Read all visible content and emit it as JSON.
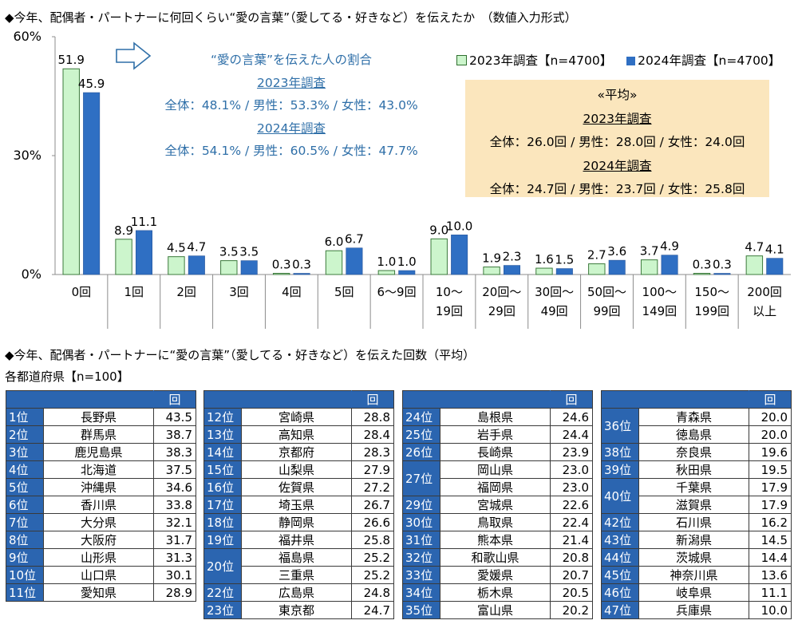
{
  "chart_title": "◆今年、配偶者・パートナーに何回くらい“愛の言葉”（愛してる・好きなど）を伝えたか　（数値入力形式）",
  "chart_data": {
    "type": "bar",
    "categories": [
      "0回",
      "1回",
      "2回",
      "3回",
      "4回",
      "5回",
      "6～9回",
      "10～\n19回",
      "20回～\n29回",
      "30回～\n49回",
      "50回～\n99回",
      "100～\n149回",
      "150～\n199回",
      "200回\n以上"
    ],
    "series": [
      {
        "name": "2023年調査【n=4700】",
        "values": [
          51.9,
          8.9,
          4.5,
          3.5,
          0.3,
          6.0,
          1.0,
          9.0,
          1.9,
          1.6,
          2.7,
          3.7,
          0.3,
          4.7
        ],
        "color": "#ccf5cc"
      },
      {
        "name": "2024年調査【n=4700】",
        "values": [
          45.9,
          11.1,
          4.7,
          3.5,
          0.3,
          6.7,
          1.0,
          10.0,
          2.3,
          1.5,
          3.6,
          4.9,
          0.3,
          4.1
        ],
        "color": "#2f6fc3"
      }
    ],
    "ylim": [
      0,
      60
    ],
    "yticks": [
      0,
      30,
      60
    ],
    "ytick_labels": [
      "0%",
      "30%",
      "60%"
    ],
    "legend_position": "top-right",
    "grid": false
  },
  "share_note": {
    "heading": "“愛の言葉”を伝えた人の割合",
    "y2023_label": "2023年調査",
    "y2023_text": "全体：48.1% / 男性：53.3% / 女性：43.0%",
    "y2024_label": "2024年調査",
    "y2024_text": "全体：54.1% / 男性：60.5% / 女性：47.7%"
  },
  "average_box": {
    "heading": "«平均»",
    "y2023_label": "2023年調査",
    "y2023_text": "全体：26.0回 / 男性：28.0回 / 女性：24.0回",
    "y2024_label": "2024年調査",
    "y2024_text": "全体：24.7回 / 男性：23.7回 / 女性：25.8回"
  },
  "ranking_title": "◆今年、配偶者・パートナーに“愛の言葉”（愛してる・好きなど）を伝えた回数（平均）",
  "ranking_subtitle": "各都道府県【n=100】",
  "ranking_header": "回",
  "ranking_columns": [
    [
      {
        "rank": "1位",
        "pref": "長野県",
        "value": "43.5",
        "rows": 2
      },
      {
        "rank": "2位",
        "pref": "群馬県",
        "value": "38.7"
      },
      {
        "rank": "3位",
        "pref": "鹿児島県",
        "value": "38.3"
      },
      {
        "rank": "4位",
        "pref": "北海道",
        "value": "37.5"
      },
      {
        "rank": "5位",
        "pref": "沖縄県",
        "value": "34.6"
      },
      {
        "rank": "6位",
        "pref": "香川県",
        "value": "33.8"
      },
      {
        "rank": "7位",
        "pref": "大分県",
        "value": "32.1"
      },
      {
        "rank": "8位",
        "pref": "大阪府",
        "value": "31.7"
      },
      {
        "rank": "9位",
        "pref": "山形県",
        "value": "31.3"
      },
      {
        "rank": "10位",
        "pref": "山口県",
        "value": "30.1"
      },
      {
        "rank": "11位",
        "pref": "愛知県",
        "value": "28.9"
      }
    ],
    [
      {
        "rank": "12位",
        "pref": "宮崎県",
        "value": "28.8"
      },
      {
        "rank": "13位",
        "pref": "高知県",
        "value": "28.4"
      },
      {
        "rank": "14位",
        "pref": "京都府",
        "value": "28.3"
      },
      {
        "rank": "15位",
        "pref": "山梨県",
        "value": "27.9"
      },
      {
        "rank": "16位",
        "pref": "佐賀県",
        "value": "27.2"
      },
      {
        "rank": "17位",
        "pref": "埼玉県",
        "value": "26.7"
      },
      {
        "rank": "18位",
        "pref": "静岡県",
        "value": "26.6"
      },
      {
        "rank": "19位",
        "pref": "福井県",
        "value": "25.8"
      },
      {
        "rank": "20位",
        "pref": "福島県",
        "value": "25.2",
        "rank_rows": 2
      },
      {
        "rank": "",
        "pref": "三重県",
        "value": "25.2"
      },
      {
        "rank": "22位",
        "pref": "広島県",
        "value": "24.8"
      },
      {
        "rank": "23位",
        "pref": "東京都",
        "value": "24.7"
      }
    ],
    [
      {
        "rank": "24位",
        "pref": "島根県",
        "value": "24.6"
      },
      {
        "rank": "25位",
        "pref": "岩手県",
        "value": "24.4"
      },
      {
        "rank": "26位",
        "pref": "長崎県",
        "value": "23.9"
      },
      {
        "rank": "27位",
        "pref": "岡山県",
        "value": "23.0",
        "rank_rows": 2
      },
      {
        "rank": "",
        "pref": "福岡県",
        "value": "23.0"
      },
      {
        "rank": "29位",
        "pref": "宮城県",
        "value": "22.6"
      },
      {
        "rank": "30位",
        "pref": "鳥取県",
        "value": "22.4"
      },
      {
        "rank": "31位",
        "pref": "熊本県",
        "value": "21.4"
      },
      {
        "rank": "32位",
        "pref": "和歌山県",
        "value": "20.8"
      },
      {
        "rank": "33位",
        "pref": "愛媛県",
        "value": "20.7"
      },
      {
        "rank": "34位",
        "pref": "栃木県",
        "value": "20.5"
      },
      {
        "rank": "35位",
        "pref": "富山県",
        "value": "20.2"
      }
    ],
    [
      {
        "rank": "36位",
        "pref": "青森県",
        "value": "20.0",
        "rank_rows": 2
      },
      {
        "rank": "",
        "pref": "徳島県",
        "value": "20.0"
      },
      {
        "rank": "38位",
        "pref": "奈良県",
        "value": "19.6"
      },
      {
        "rank": "39位",
        "pref": "秋田県",
        "value": "19.5"
      },
      {
        "rank": "40位",
        "pref": "千葉県",
        "value": "17.9",
        "rank_rows": 2
      },
      {
        "rank": "",
        "pref": "滋賀県",
        "value": "17.9"
      },
      {
        "rank": "42位",
        "pref": "石川県",
        "value": "16.2"
      },
      {
        "rank": "43位",
        "pref": "新潟県",
        "value": "14.5"
      },
      {
        "rank": "44位",
        "pref": "茨城県",
        "value": "14.4"
      },
      {
        "rank": "45位",
        "pref": "神奈川県",
        "value": "13.6"
      },
      {
        "rank": "46位",
        "pref": "岐阜県",
        "value": "11.1"
      },
      {
        "rank": "47位",
        "pref": "兵庫県",
        "value": "10.0"
      }
    ]
  ]
}
